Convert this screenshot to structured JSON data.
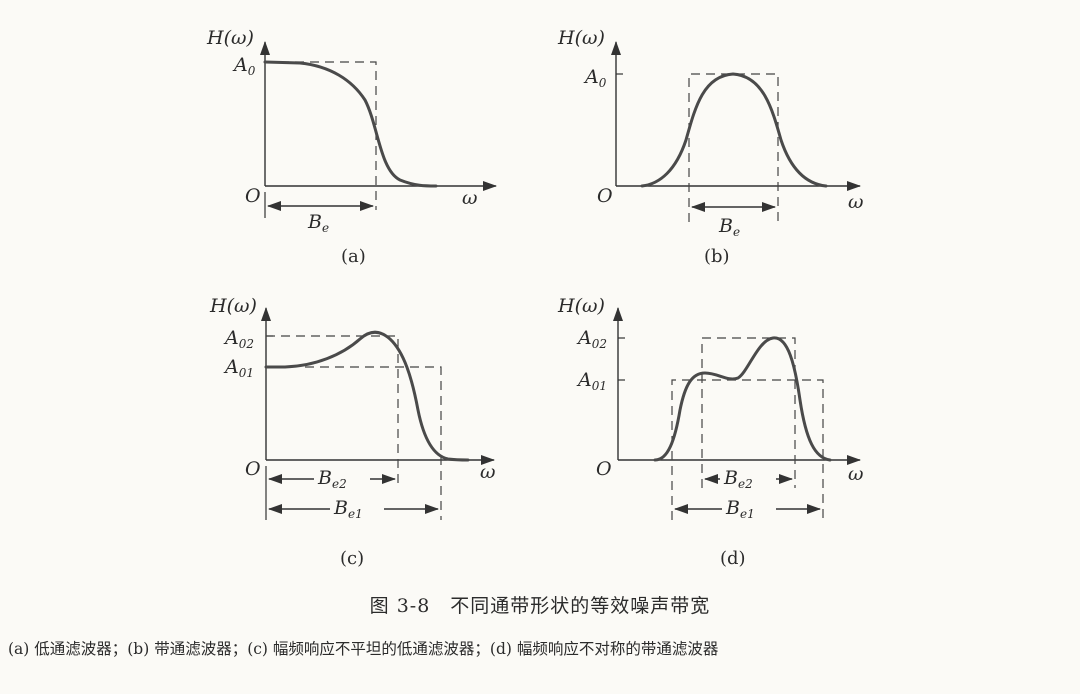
{
  "panels": {
    "a": {
      "ylabel": "H(ω)",
      "xlabel": "ω",
      "origin": "O",
      "level_main": "A",
      "level_sub": "0",
      "bw_main": "B",
      "bw_sub": "e",
      "panel_label": "(a)"
    },
    "b": {
      "ylabel": "H(ω)",
      "xlabel": "ω",
      "origin": "O",
      "level_main": "A",
      "level_sub": "0",
      "bw_main": "B",
      "bw_sub": "e",
      "panel_label": "(b)"
    },
    "c": {
      "ylabel": "H(ω)",
      "xlabel": "ω",
      "origin": "O",
      "level2_main": "A",
      "level2_sub": "02",
      "level1_main": "A",
      "level1_sub": "01",
      "bw2_main": "B",
      "bw2_sub": "e2",
      "bw1_main": "B",
      "bw1_sub": "e1",
      "panel_label": "(c)"
    },
    "d": {
      "ylabel": "H(ω)",
      "xlabel": "ω",
      "origin": "O",
      "level2_main": "A",
      "level2_sub": "02",
      "level1_main": "A",
      "level1_sub": "01",
      "bw2_main": "B",
      "bw2_sub": "e2",
      "bw1_main": "B",
      "bw1_sub": "e1",
      "panel_label": "(d)"
    }
  },
  "caption": "图 3-8　不同通带形状的等效噪声带宽",
  "subcaption": "(a) 低通滤波器；(b) 带通滤波器；(c) 幅频响应不平坦的低通滤波器；(d) 幅频响应不对称的带通滤波器"
}
